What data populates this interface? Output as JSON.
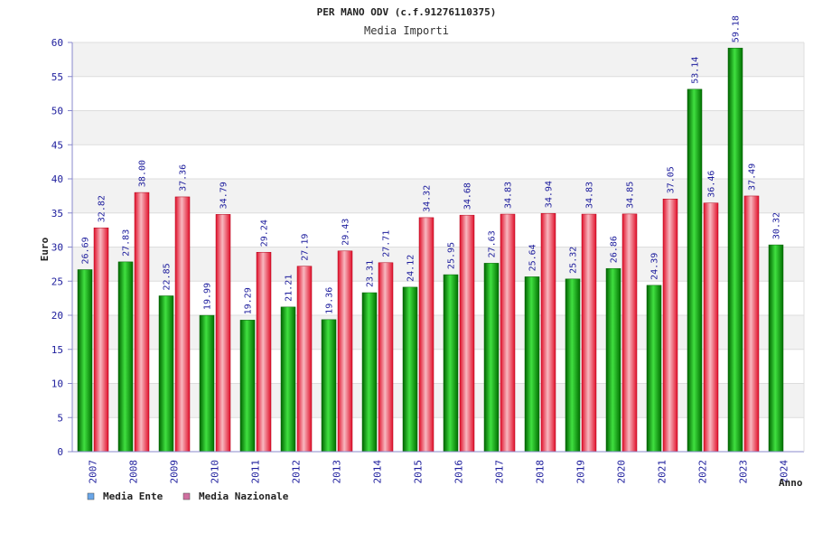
{
  "chart_data": {
    "type": "bar",
    "title": "PER MANO ODV (c.f.91276110375)",
    "subtitle": "Media Importi",
    "xlabel": "Anno",
    "ylabel": "Euro",
    "ylim": [
      0,
      60
    ],
    "yticks": [
      0,
      5,
      10,
      15,
      20,
      25,
      30,
      35,
      40,
      45,
      50,
      55,
      60
    ],
    "grid": true,
    "legend_position": "bottom-left",
    "categories": [
      "2007",
      "2008",
      "2009",
      "2010",
      "2011",
      "2012",
      "2013",
      "2014",
      "2015",
      "2016",
      "2017",
      "2018",
      "2019",
      "2020",
      "2021",
      "2022",
      "2023",
      "2024"
    ],
    "series": [
      {
        "name": "Media Ente",
        "color": "#00a000",
        "legend_color": "#6aa6e8",
        "values": [
          26.69,
          27.83,
          22.85,
          19.99,
          19.29,
          21.21,
          19.36,
          23.31,
          24.12,
          25.95,
          27.63,
          25.64,
          25.32,
          26.86,
          24.39,
          53.14,
          59.18,
          30.32
        ],
        "labels": [
          "26.69",
          "27.83",
          "22.85",
          "19.99",
          "19.29",
          "21.21",
          "19.36",
          "23.31",
          "24.12",
          "25.95",
          "27.63",
          "25.64",
          "25.32",
          "26.86",
          "24.39",
          "53.14",
          "59.18",
          "30.32"
        ]
      },
      {
        "name": "Media Nazionale",
        "color": "#e00020",
        "legend_color": "#d070a0",
        "values": [
          32.82,
          38.0,
          37.36,
          34.79,
          29.24,
          27.19,
          29.43,
          27.71,
          34.32,
          34.68,
          34.83,
          34.94,
          34.83,
          34.85,
          37.05,
          36.46,
          37.49,
          null
        ],
        "labels": [
          "32.82",
          "38.00",
          "37.36",
          "34.79",
          "29.24",
          "27.19",
          "29.43",
          "27.71",
          "34.32",
          "34.68",
          "34.83",
          "34.94",
          "34.83",
          "34.85",
          "37.05",
          "36.46",
          "37.49",
          ""
        ]
      }
    ]
  }
}
